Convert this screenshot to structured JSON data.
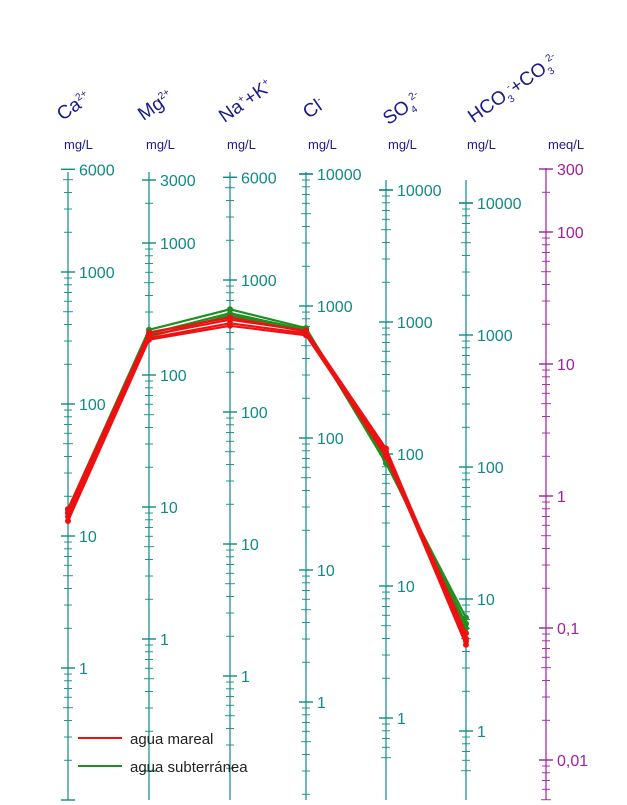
{
  "headers": {
    "ca": {
      "base": "Ca",
      "sup": "2+"
    },
    "mg": {
      "base": "Mg",
      "sup": "2+"
    },
    "nak": {
      "base1": "Na",
      "sup1": "+",
      "mid": "+K",
      "sup2": "+"
    },
    "cl": {
      "base": "Cl",
      "sup": "-"
    },
    "so4": {
      "base": "SO",
      "sub": "4",
      "sup": "2-"
    },
    "hco3": {
      "base1": "HCO",
      "sub1": "3",
      "sup1": "-",
      "mid": "+CO",
      "sub2": "3",
      "sup2": "2-"
    }
  },
  "units": {
    "mgL": "mg/L",
    "meqL": "meq/L"
  },
  "colors": {
    "axis": "#0f8a86",
    "meq_axis": "#a020a0",
    "header": "#1a1a8c",
    "mareal": "#ee1111",
    "subterranea": "#1f8f1f"
  },
  "chart_data": {
    "type": "line",
    "title": "",
    "categories": [
      "Ca2+",
      "Mg2+",
      "Na++K+",
      "Cl-",
      "SO42-",
      "HCO3-+CO32-"
    ],
    "axes": [
      {
        "name": "Ca",
        "unit": "mg/L",
        "scale": "log",
        "range": [
          0.1,
          6000
        ],
        "tick_labels": [
          "6000",
          "1000",
          "100",
          "10",
          "1"
        ]
      },
      {
        "name": "Mg",
        "unit": "mg/L",
        "scale": "log",
        "range": [
          0.1,
          3000
        ],
        "tick_labels": [
          "3000",
          "1000",
          "100",
          "10",
          "1"
        ]
      },
      {
        "name": "Na+K",
        "unit": "mg/L",
        "scale": "log",
        "range": [
          0.1,
          6000
        ],
        "tick_labels": [
          "6000",
          "1000",
          "100",
          "10",
          "1"
        ]
      },
      {
        "name": "Cl",
        "unit": "mg/L",
        "scale": "log",
        "range": [
          0.1,
          10000
        ],
        "tick_labels": [
          "10000",
          "1000",
          "100",
          "10",
          "1"
        ]
      },
      {
        "name": "SO4",
        "unit": "mg/L",
        "scale": "log",
        "range": [
          0.5,
          10000
        ],
        "tick_labels": [
          "10000",
          "1000",
          "100",
          "10",
          "1"
        ]
      },
      {
        "name": "HCO3+CO3",
        "unit": "mg/L",
        "scale": "log",
        "range": [
          0.5,
          10000
        ],
        "tick_labels": [
          "10000",
          "1000",
          "100",
          "10",
          "1"
        ]
      },
      {
        "name": "meq",
        "unit": "meq/L",
        "scale": "log",
        "range": [
          0.005,
          300
        ],
        "tick_labels": [
          "300",
          "100",
          "10",
          "1",
          "0,1",
          "0,01"
        ]
      }
    ],
    "series": [
      {
        "name": "agua mareal",
        "color": "#ee1111",
        "lines": [
          [
            15,
            200,
            500,
            650,
            110,
            5
          ],
          [
            13,
            185,
            450,
            600,
            100,
            4.5
          ],
          [
            16,
            210,
            520,
            640,
            105,
            5.5
          ],
          [
            14,
            190,
            470,
            620,
            95,
            4.8
          ]
        ]
      },
      {
        "name": "agua subterránea",
        "color": "#1f8f1f",
        "lines": [
          [
            16,
            220,
            600,
            680,
            90,
            6.5
          ],
          [
            15,
            205,
            560,
            660,
            85,
            7.2
          ],
          [
            15,
            195,
            540,
            650,
            88,
            6.0
          ]
        ]
      }
    ],
    "legend": {
      "position": "bottom-left",
      "entries": [
        "agua mareal",
        "agua subterránea"
      ]
    },
    "grid": false
  }
}
